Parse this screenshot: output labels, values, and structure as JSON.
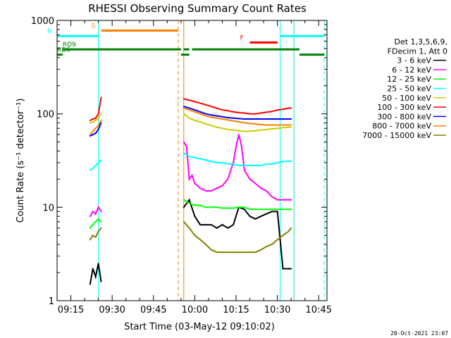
{
  "chart_data": {
    "type": "line",
    "title": "RHESSI Observing Summary Count Rates",
    "xlabel": "Start Time (03-May-12 09:10:02)",
    "ylabel": "Count Rate (s⁻¹ detector⁻¹)",
    "y_scale": "log",
    "ylim": [
      1,
      1000
    ],
    "xlim": [
      "09:10",
      "10:48"
    ],
    "x_ticks": [
      "09:15",
      "09:30",
      "09:45",
      "10:00",
      "10:15",
      "10:30",
      "10:45"
    ],
    "y_ticks": [
      "1",
      "10",
      "100",
      "1000"
    ],
    "timestamp": "20-Oct-2021 23:07",
    "legend": {
      "header": [
        "Det 1,3,5,6,9,",
        "FDecim 1, Att 0"
      ],
      "position": "right"
    },
    "series": [
      {
        "name": "3 - 6 keV",
        "color": "#000000",
        "segments": [
          {
            "x": [
              "09:22",
              "09:23",
              "09:24",
              "09:25",
              "09:26"
            ],
            "y": [
              1.5,
              2.2,
              1.8,
              2.5,
              1.6
            ]
          },
          {
            "x": [
              "09:56",
              "09:58",
              "10:00",
              "10:02",
              "10:04",
              "10:06",
              "10:08",
              "10:10",
              "10:12",
              "10:14",
              "10:16",
              "10:18",
              "10:20",
              "10:22",
              "10:24",
              "10:26",
              "10:28",
              "10:30",
              "10:32",
              "10:34",
              "10:35"
            ],
            "y": [
              10,
              12,
              8,
              6.5,
              6.5,
              6.5,
              6,
              6.5,
              6,
              6.5,
              10,
              9.5,
              8,
              7.5,
              8,
              8.5,
              9,
              9,
              2.2,
              2.2,
              2.2
            ]
          }
        ]
      },
      {
        "name": "6 - 12 keV",
        "color": "#ff00ff",
        "segments": [
          {
            "x": [
              "09:22",
              "09:23",
              "09:24",
              "09:25",
              "09:26"
            ],
            "y": [
              8,
              9,
              8.5,
              10,
              9
            ]
          },
          {
            "x": [
              "09:56",
              "09:57",
              "09:58",
              "09:59",
              "10:00",
              "10:02",
              "10:04",
              "10:06",
              "10:08",
              "10:10",
              "10:12",
              "10:14",
              "10:15",
              "10:16",
              "10:17",
              "10:18",
              "10:20",
              "10:22",
              "10:24",
              "10:26",
              "10:28",
              "10:30",
              "10:32",
              "10:34",
              "10:35"
            ],
            "y": [
              50,
              45,
              20,
              22,
              18,
              16,
              15,
              15,
              16,
              17,
              20,
              30,
              45,
              60,
              45,
              25,
              20,
              18,
              16,
              15,
              13,
              12,
              12,
              12,
              12
            ]
          }
        ]
      },
      {
        "name": "12 - 25 keV",
        "color": "#00ff00",
        "segments": [
          {
            "x": [
              "09:22",
              "09:23",
              "09:24",
              "09:25",
              "09:26"
            ],
            "y": [
              6,
              6.5,
              7,
              7.5,
              7
            ]
          },
          {
            "x": [
              "09:56",
              "09:58",
              "10:00",
              "10:02",
              "10:04",
              "10:06",
              "10:08",
              "10:10",
              "10:12",
              "10:14",
              "10:16",
              "10:18",
              "10:20",
              "10:22",
              "10:24",
              "10:26",
              "10:28",
              "10:30",
              "10:32",
              "10:34",
              "10:35"
            ],
            "y": [
              12,
              11,
              10.5,
              10.5,
              10,
              10,
              10,
              9.8,
              9.8,
              9.8,
              10,
              10,
              9.5,
              9.5,
              9.5,
              9.5,
              9.5,
              9.5,
              9.5,
              9.5,
              9.5
            ]
          }
        ]
      },
      {
        "name": "25 - 50 keV",
        "color": "#00ffff",
        "segments": [
          {
            "x": [
              "09:22",
              "09:23",
              "09:24",
              "09:25",
              "09:26"
            ],
            "y": [
              25,
              26,
              28,
              30,
              32
            ]
          },
          {
            "x": [
              "09:56",
              "09:58",
              "10:00",
              "10:02",
              "10:04",
              "10:06",
              "10:08",
              "10:10",
              "10:12",
              "10:14",
              "10:16",
              "10:18",
              "10:20",
              "10:22",
              "10:24",
              "10:26",
              "10:28",
              "10:30",
              "10:32",
              "10:34",
              "10:35"
            ],
            "y": [
              38,
              35,
              34,
              33,
              32,
              31,
              30,
              30,
              29,
              29,
              28,
              28,
              28,
              28,
              28,
              29,
              29,
              30,
              31,
              31,
              31
            ]
          }
        ]
      },
      {
        "name": "50 - 100 keV",
        "color": "#cccc00",
        "segments": [
          {
            "x": [
              "09:22",
              "09:23",
              "09:24",
              "09:25",
              "09:26"
            ],
            "y": [
              80,
              82,
              85,
              90,
              100
            ]
          },
          {
            "x": [
              "09:56",
              "09:58",
              "10:00",
              "10:02",
              "10:04",
              "10:06",
              "10:08",
              "10:10",
              "10:12",
              "10:14",
              "10:16",
              "10:18",
              "10:20",
              "10:22",
              "10:24",
              "10:26",
              "10:28",
              "10:30",
              "10:32",
              "10:34",
              "10:35"
            ],
            "y": [
              100,
              90,
              85,
              82,
              78,
              75,
              72,
              70,
              68,
              67,
              66,
              65,
              65,
              66,
              67,
              68,
              69,
              70,
              71,
              72,
              72
            ]
          }
        ]
      },
      {
        "name": "100 - 300 keV",
        "color": "#ff0000",
        "segments": [
          {
            "x": [
              "09:22",
              "09:23",
              "09:24",
              "09:25",
              "09:26"
            ],
            "y": [
              85,
              88,
              90,
              100,
              150
            ]
          },
          {
            "x": [
              "09:56",
              "09:58",
              "10:00",
              "10:02",
              "10:04",
              "10:06",
              "10:08",
              "10:10",
              "10:12",
              "10:14",
              "10:16",
              "10:18",
              "10:20",
              "10:22",
              "10:24",
              "10:26",
              "10:28",
              "10:30",
              "10:32",
              "10:34",
              "10:35"
            ],
            "y": [
              145,
              140,
              135,
              130,
              125,
              120,
              115,
              110,
              108,
              105,
              103,
              102,
              100,
              100,
              102,
              104,
              106,
              110,
              112,
              115,
              115
            ]
          }
        ]
      },
      {
        "name": "300 - 800 keV",
        "color": "#0000ff",
        "segments": [
          {
            "x": [
              "09:22",
              "09:23",
              "09:24",
              "09:25",
              "09:26"
            ],
            "y": [
              58,
              60,
              62,
              68,
              80
            ]
          },
          {
            "x": [
              "09:56",
              "09:58",
              "10:00",
              "10:02",
              "10:04",
              "10:06",
              "10:08",
              "10:10",
              "10:12",
              "10:14",
              "10:16",
              "10:18",
              "10:20",
              "10:22",
              "10:24",
              "10:26",
              "10:28",
              "10:30",
              "10:32",
              "10:34",
              "10:35"
            ],
            "y": [
              120,
              115,
              110,
              105,
              100,
              97,
              95,
              93,
              91,
              90,
              89,
              88,
              88,
              88,
              88,
              88,
              88,
              88,
              88,
              88,
              88
            ]
          }
        ]
      },
      {
        "name": "800 - 7000 keV",
        "color": "#ff8000",
        "segments": [
          {
            "x": [
              "09:22",
              "09:23",
              "09:24",
              "09:25",
              "09:26"
            ],
            "y": [
              60,
              65,
              70,
              75,
              85
            ]
          },
          {
            "x": [
              "09:56",
              "09:58",
              "10:00",
              "10:02",
              "10:04",
              "10:06",
              "10:08",
              "10:10",
              "10:12",
              "10:14",
              "10:16",
              "10:18",
              "10:20",
              "10:22",
              "10:24",
              "10:26",
              "10:28",
              "10:30",
              "10:32",
              "10:34",
              "10:35"
            ],
            "y": [
              115,
              110,
              105,
              100,
              95,
              92,
              90,
              88,
              86,
              84,
              82,
              80,
              79,
              78,
              77,
              76,
              76,
              76,
              76,
              76,
              76
            ]
          }
        ]
      },
      {
        "name": "7000 - 15000 keV",
        "color": "#808000",
        "segments": [
          {
            "x": [
              "09:22",
              "09:23",
              "09:24",
              "09:25",
              "09:26"
            ],
            "y": [
              4.5,
              5,
              4.8,
              5.5,
              6
            ]
          },
          {
            "x": [
              "09:56",
              "09:58",
              "10:00",
              "10:02",
              "10:04",
              "10:06",
              "10:08",
              "10:10",
              "10:12",
              "10:14",
              "10:16",
              "10:18",
              "10:20",
              "10:22",
              "10:24",
              "10:26",
              "10:28",
              "10:30",
              "10:32",
              "10:34",
              "10:35"
            ],
            "y": [
              7,
              6,
              5,
              4.5,
              4,
              3.5,
              3.3,
              3.3,
              3.3,
              3.3,
              3.3,
              3.3,
              3.3,
              3.3,
              3.5,
              3.8,
              4,
              4.5,
              5,
              5.5,
              6
            ]
          }
        ]
      }
    ],
    "flag_bars": [
      {
        "label": "S",
        "color": "#ff8000",
        "x": [
          "09:26",
          "09:54"
        ],
        "level": 780
      },
      {
        "label": "N",
        "color": "#00ffff",
        "x": [
          "09:10",
          "09:25"
        ],
        "level": 680
      },
      {
        "label": "",
        "color": "#00ffff",
        "x": [
          "10:31",
          "10:47"
        ],
        "level": 680
      },
      {
        "label": "F",
        "color": "#ff0000",
        "x": [
          "10:20",
          "10:30"
        ],
        "level": 580
      },
      {
        "label": "RD9",
        "color": "#008000",
        "x": [
          "09:12",
          "10:38"
        ],
        "level": 490,
        "gaps": [
          [
            "09:55",
            "09:56"
          ],
          [
            "09:58",
            "09:59"
          ]
        ]
      },
      {
        "label": "RD6",
        "color": "#008000",
        "x": [
          "09:10",
          "09:12"
        ],
        "level": 430,
        "extra": [
          [
            "09:55",
            "09:58"
          ],
          [
            "10:38",
            "10:47"
          ]
        ]
      }
    ],
    "vertical_markers": [
      {
        "x": "09:25",
        "color": "#00ffff",
        "style": "solid"
      },
      {
        "x": "09:54",
        "color": "#ff8000",
        "style": "dashed"
      },
      {
        "x": "09:56",
        "color": "#ff8000",
        "style": "solid"
      },
      {
        "x": "10:31",
        "color": "#00ffff",
        "style": "solid"
      },
      {
        "x": "10:36",
        "color": "#ff8000",
        "style": "solid"
      },
      {
        "x": "10:36",
        "color": "#00ffff",
        "style": "solid"
      },
      {
        "x": "10:47",
        "color": "#00ffff",
        "style": "dashed"
      }
    ],
    "grid": false
  }
}
